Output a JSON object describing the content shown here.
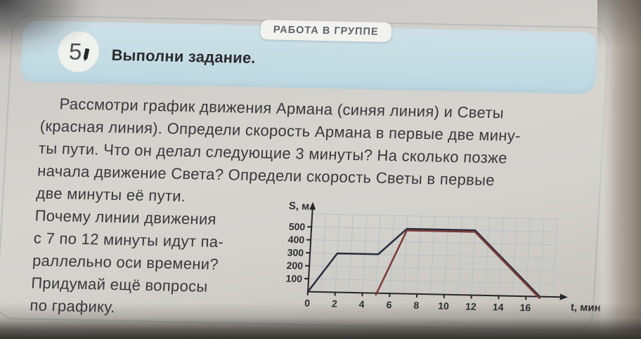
{
  "task": {
    "badge": "РАБОТА В ГРУППЕ",
    "number": "5",
    "title": "Выполни задание.",
    "intro_lines": [
      "Рассмотри график движения Армана (синяя линия) и Светы",
      "(красная линия). Определи скорость Армана в первые две мину-",
      "ты пути. Что он делал следующие 3 минуты? На сколько позже",
      "начала движение Света? Определи скорость Светы в первые"
    ],
    "left_column_lines": [
      "две минуты её пути.",
      "Почему линии движения",
      "с 7 по 12 минуты идут па-",
      "раллельно оси времени?",
      "Придумай ещё вопросы",
      "по графику."
    ],
    "colors": {
      "header_band": "#c6dde4",
      "badge_background": "#f2f3ef",
      "text": "#39393c"
    }
  },
  "chart_data": {
    "type": "line",
    "title": "",
    "xlabel": "t, мин",
    "ylabel": "S, м",
    "x_ticks": [
      0,
      2,
      4,
      6,
      8,
      10,
      12,
      14,
      16
    ],
    "y_ticks": [
      100,
      200,
      300,
      400,
      500
    ],
    "xlim": [
      0,
      18.5
    ],
    "ylim": [
      0,
      620
    ],
    "grid": true,
    "grid_color": "#b6c1c7",
    "axis_color": "#26262a",
    "legend_position": "none",
    "series": [
      {
        "name": "Арман (синяя линия)",
        "color": "#262e3e",
        "points": [
          [
            0,
            0
          ],
          [
            2,
            300
          ],
          [
            5,
            300
          ],
          [
            7,
            500
          ],
          [
            12,
            500
          ],
          [
            17,
            0
          ]
        ]
      },
      {
        "name": "Света (красная линия)",
        "color": "#7c3c38",
        "points": [
          [
            5,
            0
          ],
          [
            7,
            500
          ],
          [
            12,
            500
          ],
          [
            17,
            0
          ]
        ]
      }
    ]
  }
}
